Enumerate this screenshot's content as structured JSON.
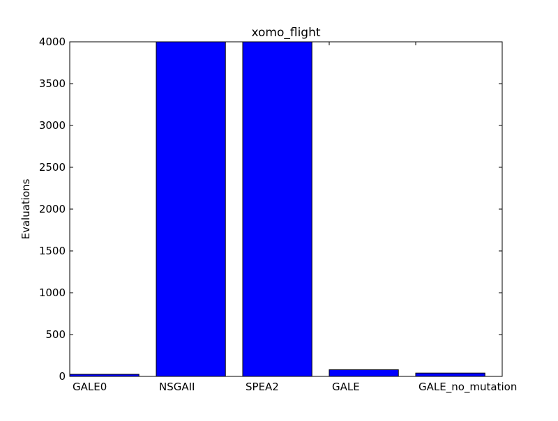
{
  "chart_data": {
    "type": "bar",
    "title": "xomo_flight",
    "xlabel": "",
    "ylabel": "Evaluations",
    "categories": [
      "GALE0",
      "NSGAII",
      "SPEA2",
      "GALE",
      "GALE_no_mutation"
    ],
    "values": [
      25,
      4000,
      4000,
      80,
      40
    ],
    "ylim": [
      0,
      4000
    ],
    "yticks": [
      0,
      500,
      1000,
      1500,
      2000,
      2500,
      3000,
      3500,
      4000
    ],
    "grid": false,
    "legend": "none",
    "colors": {
      "bar_fill": "#0000ff",
      "bar_edge": "#000000",
      "axes": "#000000",
      "background": "#ffffff"
    }
  }
}
